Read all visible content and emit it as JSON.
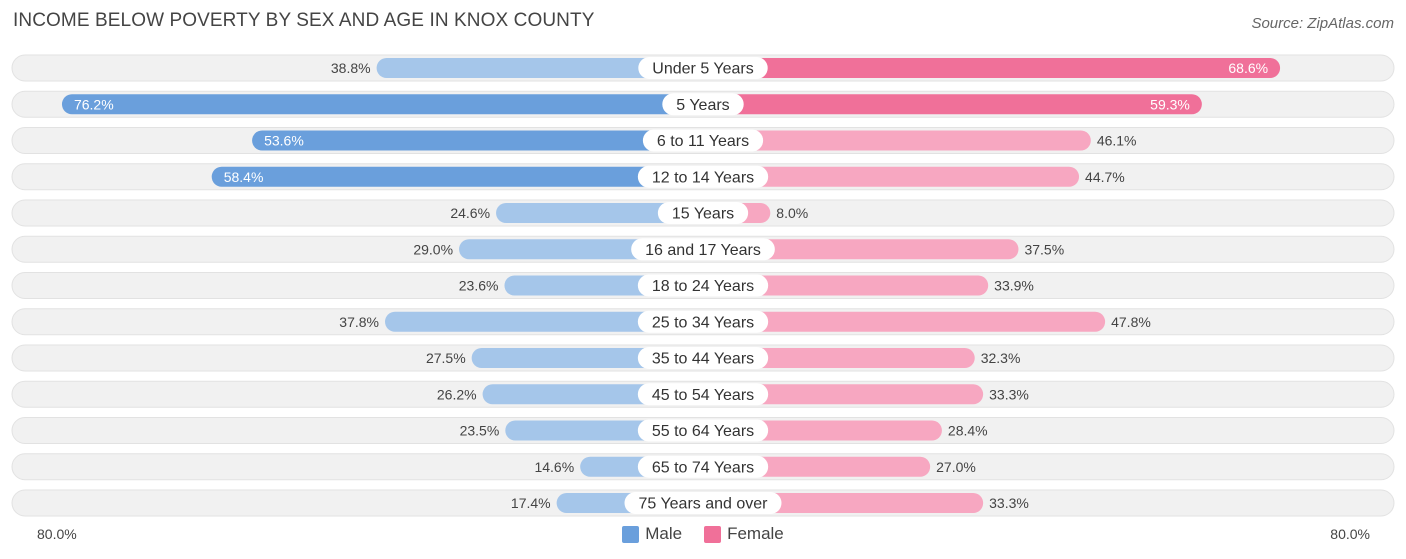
{
  "title": "INCOME BELOW POVERTY BY SEX AND AGE IN KNOX COUNTY",
  "source": "Source: ZipAtlas.com",
  "axis": {
    "left_label": "80.0%",
    "right_label": "80.0%"
  },
  "legend": {
    "male": "Male",
    "female": "Female"
  },
  "colors": {
    "male_strong": "#6a9fdc",
    "male_light": "#a5c6ea",
    "female_strong": "#f07099",
    "female_light": "#f7a7c1",
    "row_bg": "#f1f1f1",
    "row_border": "#e2e2e2"
  },
  "chart_data": {
    "type": "bar",
    "orientation": "horizontal-diverging",
    "title": "INCOME BELOW POVERTY BY SEX AND AGE IN KNOX COUNTY",
    "xlim": [
      -80,
      80
    ],
    "categories": [
      "Under 5 Years",
      "5 Years",
      "6 to 11 Years",
      "12 to 14 Years",
      "15 Years",
      "16 and 17 Years",
      "18 to 24 Years",
      "25 to 34 Years",
      "35 to 44 Years",
      "45 to 54 Years",
      "55 to 64 Years",
      "65 to 74 Years",
      "75 Years and over"
    ],
    "series": [
      {
        "name": "Male",
        "values": [
          38.8,
          76.2,
          53.6,
          58.4,
          24.6,
          29.0,
          23.6,
          37.8,
          27.5,
          26.2,
          23.5,
          14.6,
          17.4
        ],
        "labels": [
          "38.8%",
          "76.2%",
          "53.6%",
          "58.4%",
          "24.6%",
          "29.0%",
          "23.6%",
          "37.8%",
          "27.5%",
          "26.2%",
          "23.5%",
          "14.6%",
          "17.4%"
        ]
      },
      {
        "name": "Female",
        "values": [
          68.6,
          59.3,
          46.1,
          44.7,
          8.0,
          37.5,
          33.9,
          47.8,
          32.3,
          33.3,
          28.4,
          27.0,
          33.3
        ],
        "labels": [
          "68.6%",
          "59.3%",
          "46.1%",
          "44.7%",
          "8.0%",
          "37.5%",
          "33.9%",
          "47.8%",
          "32.3%",
          "33.3%",
          "28.4%",
          "27.0%",
          "33.3%"
        ]
      }
    ]
  }
}
